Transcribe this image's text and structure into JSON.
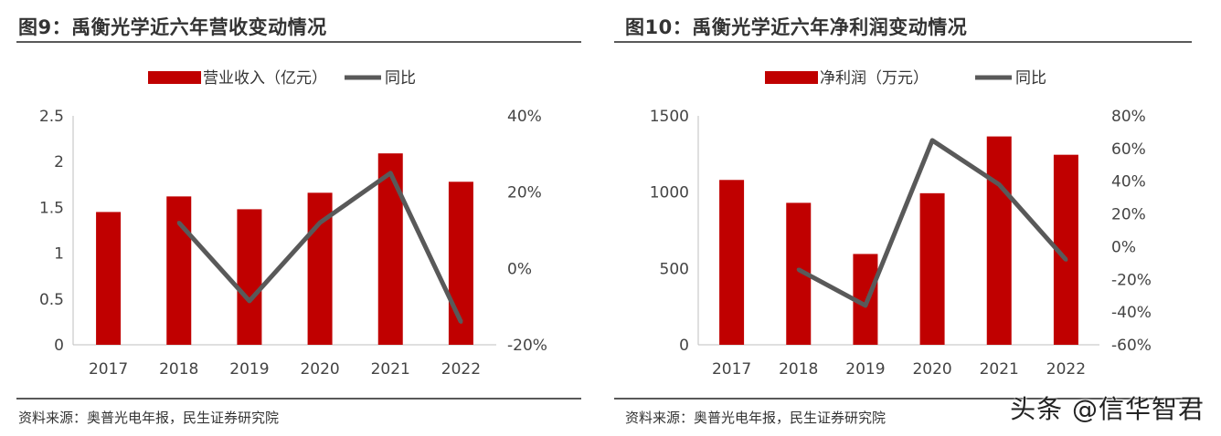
{
  "figures": [
    {
      "title": "图9：禹衡光学近六年营收变动情况",
      "source": "资料来源：奥普光电年报，民生证券研究院"
    },
    {
      "title": "图10：禹衡光学近六年净利润变动情况",
      "source": "资料来源：奥普光电年报，民生证券研究院"
    }
  ],
  "watermark": "头条 @信华智君",
  "colors": {
    "bar": "#C00000",
    "line": "#595959"
  },
  "chart_data": [
    {
      "type": "bar",
      "categories": [
        "2017",
        "2018",
        "2019",
        "2020",
        "2021",
        "2022"
      ],
      "series": [
        {
          "name": "营业收入（亿元）",
          "type": "bar",
          "axis": "left",
          "values": [
            1.45,
            1.62,
            1.48,
            1.66,
            2.09,
            1.78
          ]
        },
        {
          "name": "同比",
          "type": "line",
          "axis": "right",
          "values": [
            null,
            12,
            -8.5,
            12,
            25,
            -14
          ]
        }
      ],
      "yleft": {
        "ticks": [
          "0",
          "0.5",
          "1",
          "1.5",
          "2",
          "2.5"
        ],
        "min": 0,
        "max": 2.5
      },
      "yright": {
        "ticks": [
          "-20%",
          "0%",
          "20%",
          "40%"
        ],
        "min": -20,
        "max": 40
      },
      "legend": "top"
    },
    {
      "type": "bar",
      "categories": [
        "2017",
        "2018",
        "2019",
        "2020",
        "2021",
        "2022"
      ],
      "series": [
        {
          "name": "净利润（万元）",
          "type": "bar",
          "axis": "left",
          "values": [
            1080,
            930,
            595,
            993,
            1365,
            1245
          ]
        },
        {
          "name": "同比",
          "type": "line",
          "axis": "right",
          "values": [
            null,
            -14,
            -36,
            65,
            38,
            -8
          ]
        }
      ],
      "yleft": {
        "ticks": [
          "0",
          "500",
          "1000",
          "1500"
        ],
        "min": 0,
        "max": 1500
      },
      "yright": {
        "ticks": [
          "-60%",
          "-40%",
          "-20%",
          "0%",
          "20%",
          "40%",
          "60%",
          "80%"
        ],
        "min": -60,
        "max": 80
      },
      "legend": "top"
    }
  ]
}
